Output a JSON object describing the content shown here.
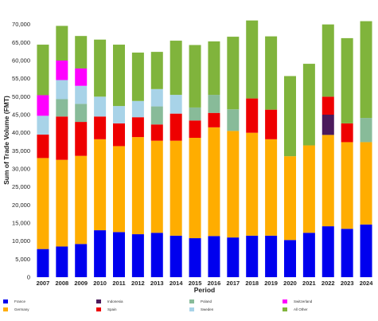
{
  "chart_data": {
    "type": "bar",
    "stacked": true,
    "title": "",
    "xlabel": "Period",
    "ylabel": "Sum of Trade Volume (FMT)",
    "ylim": [
      0,
      75000
    ],
    "yticks": [
      "0",
      "5,000",
      "10,000",
      "15,000",
      "20,000",
      "25,000",
      "30,000",
      "35,000",
      "40,000",
      "45,000",
      "50,000",
      "55,000",
      "60,000",
      "65,000",
      "70,000"
    ],
    "grid": false,
    "legend": "bottom",
    "categories": [
      "2007",
      "2008",
      "2009",
      "2010",
      "2011",
      "2012",
      "2013",
      "2014",
      "2015",
      "2016",
      "2017",
      "2018",
      "2019",
      "2020",
      "2021",
      "2022",
      "2023",
      "2024"
    ],
    "series": [
      {
        "name": "France",
        "color": "#0000ee",
        "values": [
          7800,
          8500,
          9200,
          13000,
          12500,
          11900,
          12300,
          11500,
          10800,
          11400,
          11000,
          11500,
          11500,
          10300,
          12300,
          14100,
          13400,
          14600
        ]
      },
      {
        "name": "Germany",
        "color": "#ffad00",
        "values": [
          25200,
          24000,
          24400,
          25200,
          23800,
          26900,
          25500,
          26300,
          27800,
          30100,
          29500,
          28500,
          26700,
          23200,
          24200,
          25300,
          24000,
          22800
        ]
      },
      {
        "name": "Indonesia",
        "color": "#4b1a5c",
        "values": [
          0,
          0,
          0,
          0,
          0,
          0,
          0,
          0,
          0,
          0,
          0,
          0,
          0,
          0,
          0,
          5600,
          0,
          0
        ]
      },
      {
        "name": "Spain",
        "color": "#ee0000",
        "values": [
          6500,
          12000,
          9400,
          6300,
          6300,
          5500,
          4500,
          7500,
          4800,
          4000,
          0,
          9500,
          8200,
          0,
          0,
          5000,
          5200,
          0
        ]
      },
      {
        "name": "Poland",
        "color": "#88bb99",
        "values": [
          0,
          4800,
          5000,
          0,
          0,
          0,
          5000,
          0,
          3600,
          5000,
          6000,
          0,
          0,
          0,
          0,
          0,
          0,
          6700
        ]
      },
      {
        "name": "Sweden",
        "color": "#a8d3e8",
        "values": [
          5200,
          5300,
          5000,
          5500,
          4800,
          4500,
          4800,
          5200,
          0,
          0,
          0,
          0,
          0,
          0,
          0,
          0,
          0,
          0
        ]
      },
      {
        "name": "Switzerland",
        "color": "#ff00ff",
        "values": [
          5700,
          5400,
          4800,
          0,
          0,
          0,
          0,
          0,
          0,
          0,
          0,
          0,
          0,
          0,
          0,
          0,
          0,
          0
        ]
      },
      {
        "name": "All Other",
        "color": "#80b43c",
        "values": [
          14000,
          9600,
          9000,
          15800,
          17000,
          13400,
          10300,
          15000,
          17300,
          14800,
          20100,
          21600,
          20300,
          22200,
          22600,
          20000,
          23600,
          26800
        ]
      }
    ]
  }
}
